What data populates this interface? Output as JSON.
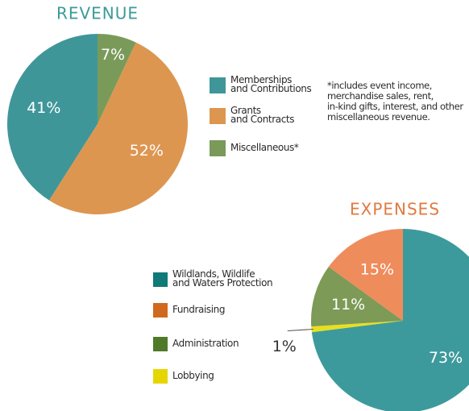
{
  "chart_data": [
    {
      "type": "pie",
      "title": "REVENUE",
      "title_color": "#3a9a9a",
      "categories": [
        "Memberships\nand Contributions",
        "Grants\nand Contracts",
        "Miscellaneous*"
      ],
      "values": [
        41,
        52,
        7
      ],
      "value_labels": [
        "41%",
        "52%",
        "7%"
      ],
      "colors": [
        "#3f9699",
        "#dd9650",
        "#7a9a5a"
      ],
      "direction": "counterclockwise",
      "note": "*includes event income,\nmerchandise sales, rent,\nin-kind gifts, interest, and other\nmiscellaneous revenue."
    },
    {
      "type": "pie",
      "title": "EXPENSES",
      "title_color": "#e07a40",
      "categories": [
        "Wildlands, Wildlife\nand Waters Protection",
        "Fundraising",
        "Administration",
        "Lobbying"
      ],
      "values": [
        73,
        15,
        11,
        1
      ],
      "value_labels": [
        "73%",
        "15%",
        "11%",
        "1%"
      ],
      "colors": [
        "#3d9a9c",
        "#ef8c5c",
        "#7d9a56",
        "#e8df20"
      ],
      "legend_colors": [
        "#0f7a78",
        "#d0691e",
        "#4f7a2a",
        "#e6d600"
      ],
      "direction": "clockwise"
    }
  ]
}
